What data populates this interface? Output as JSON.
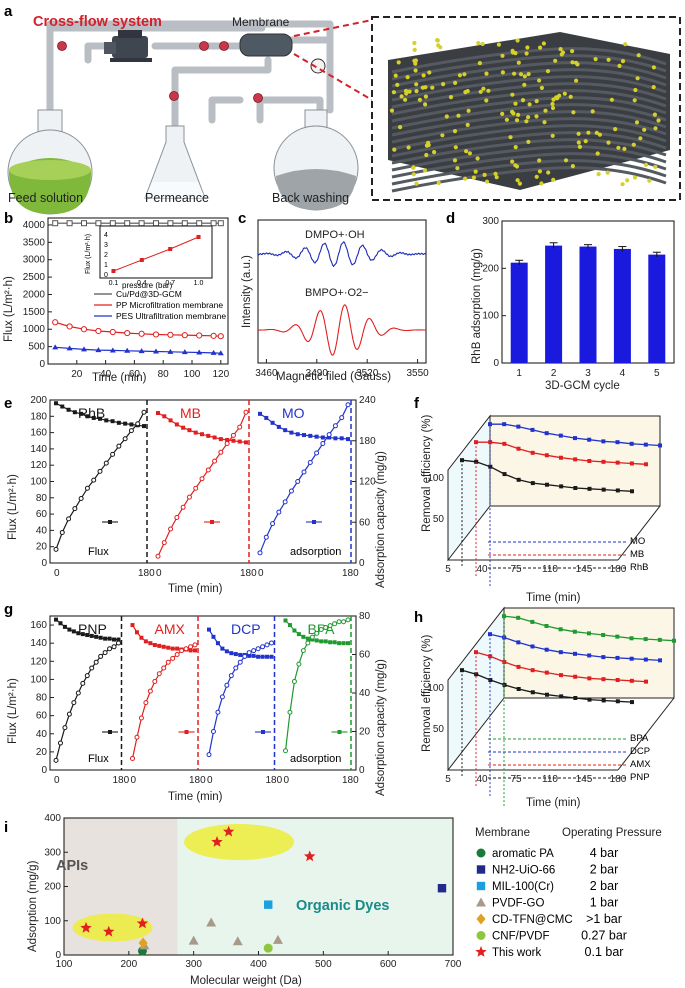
{
  "panel_labels": [
    "a",
    "b",
    "c",
    "d",
    "e",
    "f",
    "g",
    "h",
    "i"
  ],
  "panel_a": {
    "title": "Cross-flow system",
    "membrane_label": "Membrane",
    "flask_labels": [
      "Feed solution",
      "Permeance",
      "Back washing"
    ]
  },
  "colors": {
    "black": "#1a1a1a",
    "red": "#e02020",
    "blue": "#2233cc",
    "green": "#1f9a2f",
    "title_red": "#d4202a"
  },
  "chart_data": [
    {
      "id": "b",
      "type": "line",
      "xlabel": "Time (min)",
      "ylabel": "Flux (L/m²·h)",
      "xlim": [
        0,
        125
      ],
      "ylim": [
        0,
        4200
      ],
      "xticks": [
        20,
        40,
        60,
        80,
        100,
        120
      ],
      "yticks": [
        0,
        500,
        1000,
        1500,
        2000,
        2500,
        3000,
        3500,
        4000
      ],
      "series": [
        {
          "name": "Cu/Pd@3D-GCM",
          "color": "#555555",
          "x": [
            5,
            15,
            25,
            35,
            45,
            55,
            65,
            75,
            85,
            95,
            105,
            115,
            120
          ],
          "y": [
            4050,
            4050,
            4050,
            4050,
            4050,
            4050,
            4050,
            4050,
            4050,
            4050,
            4050,
            4050,
            4050
          ]
        },
        {
          "name": "PP Microfiltration membrane",
          "color": "#e02020",
          "x": [
            5,
            15,
            25,
            35,
            45,
            55,
            65,
            75,
            85,
            95,
            105,
            115,
            120
          ],
          "y": [
            1200,
            1080,
            1000,
            950,
            920,
            890,
            870,
            850,
            840,
            830,
            820,
            810,
            800
          ]
        },
        {
          "name": "PES Ultrafiltration membrane",
          "color": "#2233cc",
          "x": [
            5,
            15,
            25,
            35,
            45,
            55,
            65,
            75,
            85,
            95,
            105,
            115,
            120
          ],
          "y": [
            480,
            450,
            420,
            400,
            390,
            380,
            370,
            360,
            350,
            340,
            330,
            320,
            310
          ]
        }
      ],
      "inset": {
        "xlabel": "pressure (bar)",
        "ylabel": "Flux (L/m²·h)",
        "xticks": [
          "0.1",
          "0.4",
          "0.7",
          "1.0"
        ],
        "yticks": [
          "0",
          "1",
          "2",
          "3",
          "4"
        ],
        "x": [
          0.1,
          0.4,
          0.7,
          1.0
        ],
        "y": [
          0.3,
          1.4,
          2.5,
          3.7
        ]
      }
    },
    {
      "id": "c",
      "type": "line",
      "xlabel": "Magnetic filed (Gauss)",
      "ylabel": "Intensity (a.u.)",
      "xticks": [
        3460,
        3490,
        3520,
        3550
      ],
      "annotations": [
        "DMPO+·OH",
        "BMPO+·O2−"
      ]
    },
    {
      "id": "d",
      "type": "bar",
      "xlabel": "3D-GCM cycle",
      "ylabel": "RhB adsorption (mg/g)",
      "categories": [
        "1",
        "2",
        "3",
        "4",
        "5"
      ],
      "values": [
        212,
        248,
        246,
        241,
        229
      ],
      "errors": [
        5,
        6,
        4,
        5,
        5
      ],
      "ylim": [
        0,
        300
      ],
      "yticks": [
        0,
        100,
        200,
        300
      ],
      "color": "#1a1adf"
    },
    {
      "id": "e",
      "type": "line",
      "xlabel": "Time (min)",
      "ylabel": "Flux (L/m²·h)",
      "y2label": "Adsorption capacity (mg/g)",
      "ylim": [
        0,
        200
      ],
      "y2lim": [
        0,
        240
      ],
      "yticks": [
        0,
        20,
        40,
        60,
        80,
        100,
        120,
        140,
        160,
        180,
        200
      ],
      "y2ticks": [
        0,
        60,
        120,
        180,
        240
      ],
      "xticks": [
        "0",
        "180"
      ],
      "segments": [
        "RhB",
        "MB",
        "MO"
      ],
      "legend_labels": [
        "Flux",
        "adsorption"
      ],
      "flux": [
        [
          196,
          192,
          188,
          185,
          183,
          180,
          178,
          177,
          175,
          174,
          172,
          171,
          170,
          169,
          168
        ],
        [
          184,
          180,
          175,
          170,
          166,
          163,
          160,
          158,
          156,
          154,
          152,
          151,
          150,
          149,
          148
        ],
        [
          183,
          178,
          172,
          167,
          163,
          160,
          158,
          157,
          156,
          155,
          154,
          154,
          153,
          153,
          152
        ]
      ],
      "adsorption": [
        [
          20,
          45,
          65,
          80,
          95,
          110,
          122,
          135,
          147,
          160,
          172,
          183,
          195,
          205,
          222
        ],
        [
          10,
          30,
          50,
          67,
          82,
          97,
          110,
          124,
          137,
          150,
          163,
          176,
          188,
          200,
          222
        ],
        [
          15,
          38,
          58,
          75,
          90,
          106,
          120,
          134,
          148,
          162,
          176,
          189,
          202,
          214,
          233
        ]
      ]
    },
    {
      "id": "f",
      "type": "line",
      "xlabel": "Time (min)",
      "ylabel": "Removal efficiency (%)",
      "xticks": [
        5,
        40,
        75,
        110,
        145,
        180
      ],
      "yticks": [
        50,
        100
      ],
      "series_labels": [
        "RhB",
        "MB",
        "MO"
      ],
      "values": [
        [
          100,
          98,
          92,
          83,
          76,
          72,
          70,
          68,
          66,
          65,
          64,
          63,
          62
        ],
        [
          100,
          100,
          98,
          92,
          87,
          84,
          81,
          79,
          77,
          76,
          75,
          74,
          73
        ],
        [
          100,
          100,
          97,
          93,
          89,
          86,
          83,
          81,
          79,
          78,
          76,
          75,
          74
        ]
      ]
    },
    {
      "id": "g",
      "type": "line",
      "xlabel": "Time (min)",
      "ylabel": "Flux (L/m²·h)",
      "y2label": "Adsorption capacity (mg/g)",
      "ylim": [
        0,
        170
      ],
      "y2lim": [
        0,
        80
      ],
      "yticks": [
        0,
        20,
        40,
        60,
        80,
        100,
        120,
        140,
        160
      ],
      "y2ticks": [
        0,
        20,
        40,
        60,
        80
      ],
      "xticks": [
        "0",
        "180"
      ],
      "segments": [
        "PNP",
        "AMX",
        "DCP",
        "BPA"
      ],
      "legend_labels": [
        "Flux",
        "adsorption"
      ],
      "flux": [
        [
          166,
          162,
          158,
          155,
          153,
          151,
          150,
          149,
          148,
          147,
          146,
          145,
          145,
          144,
          144
        ],
        [
          160,
          152,
          146,
          142,
          140,
          138,
          137,
          136,
          135,
          134,
          134,
          133,
          133,
          132,
          132
        ],
        [
          155,
          147,
          140,
          134,
          131,
          129,
          128,
          127,
          127,
          126,
          126,
          125,
          125,
          125,
          125
        ],
        [
          165,
          160,
          154,
          150,
          147,
          145,
          144,
          143,
          142,
          142,
          141,
          141,
          140,
          140,
          140
        ]
      ],
      "adsorption": [
        [
          5,
          14,
          22,
          29,
          35,
          40,
          45,
          49,
          53,
          56,
          59,
          61,
          63,
          64,
          66
        ],
        [
          6,
          17,
          27,
          35,
          41,
          46,
          50,
          53,
          56,
          58,
          60,
          62,
          63,
          64,
          65
        ],
        [
          8,
          20,
          30,
          38,
          44,
          49,
          53,
          56,
          59,
          61,
          62,
          63,
          64,
          65,
          66
        ],
        [
          10,
          30,
          46,
          55,
          62,
          66,
          69,
          71,
          73,
          74,
          75,
          76,
          77,
          77,
          78
        ]
      ]
    },
    {
      "id": "h",
      "type": "line",
      "xlabel": "Time (min)",
      "ylabel": "Removal efficiency (%)",
      "xticks": [
        5,
        40,
        75,
        110,
        145,
        180
      ],
      "yticks": [
        50,
        100
      ],
      "series_labels": [
        "PNP",
        "AMX",
        "DCP",
        "BPA"
      ],
      "values": [
        [
          100,
          95,
          88,
          82,
          77,
          73,
          70,
          68,
          66,
          64,
          63,
          62,
          61
        ],
        [
          100,
          95,
          88,
          82,
          78,
          75,
          72,
          70,
          68,
          67,
          66,
          65,
          64
        ],
        [
          100,
          96,
          90,
          85,
          81,
          78,
          76,
          74,
          72,
          71,
          70,
          69,
          68
        ],
        [
          100,
          98,
          93,
          88,
          84,
          81,
          79,
          77,
          75,
          73,
          72,
          71,
          70
        ]
      ]
    },
    {
      "id": "i",
      "type": "scatter",
      "xlabel": "Molecular weight (Da)",
      "ylabel": "Adsorption (mg/g)",
      "xlim": [
        100,
        700
      ],
      "ylim": [
        0,
        400
      ],
      "xticks": [
        100,
        200,
        300,
        400,
        500,
        600,
        700
      ],
      "yticks": [
        0,
        100,
        200,
        300,
        400
      ],
      "regions": [
        "APIs",
        "Organic Dyes"
      ],
      "legend_headers": [
        "Membrane",
        "Operating Pressure"
      ],
      "series": [
        {
          "name": "aromatic PA",
          "pressure": "4 bar",
          "marker": "circle",
          "color": "#1a7a3a",
          "points": [
            [
              221,
              12
            ]
          ]
        },
        {
          "name": "NH2-UiO-66",
          "pressure": "2 bar",
          "marker": "square",
          "color": "#1f2a8a",
          "points": [
            [
              683,
              195
            ]
          ]
        },
        {
          "name": "MIL-100(Cr)",
          "pressure": "2 bar",
          "marker": "square",
          "color": "#1aa0e0",
          "points": [
            [
              415,
              147
            ]
          ]
        },
        {
          "name": "PVDF-GO",
          "pressure": "1 bar",
          "marker": "triangle",
          "color": "#a89a88",
          "points": [
            [
              224,
              28
            ],
            [
              327,
              95
            ],
            [
              300,
              42
            ],
            [
              368,
              40
            ],
            [
              430,
              44
            ]
          ]
        },
        {
          "name": "CD-TFN@CMC",
          "pressure": ">1 bar",
          "marker": "diamond",
          "color": "#e0a020",
          "points": [
            [
              222,
              35
            ]
          ]
        },
        {
          "name": "CNF/PVDF",
          "pressure": "0.27 bar",
          "marker": "circle",
          "color": "#8dc63f",
          "points": [
            [
              415,
              20
            ]
          ]
        },
        {
          "name": "This work",
          "pressure": "0.1 bar",
          "marker": "star",
          "color": "#e02020",
          "points": [
            [
              336,
              330
            ],
            [
              354,
              360
            ],
            [
              479,
              288
            ],
            [
              134,
              79
            ],
            [
              169,
              68
            ],
            [
              221,
              92
            ]
          ]
        }
      ]
    }
  ]
}
